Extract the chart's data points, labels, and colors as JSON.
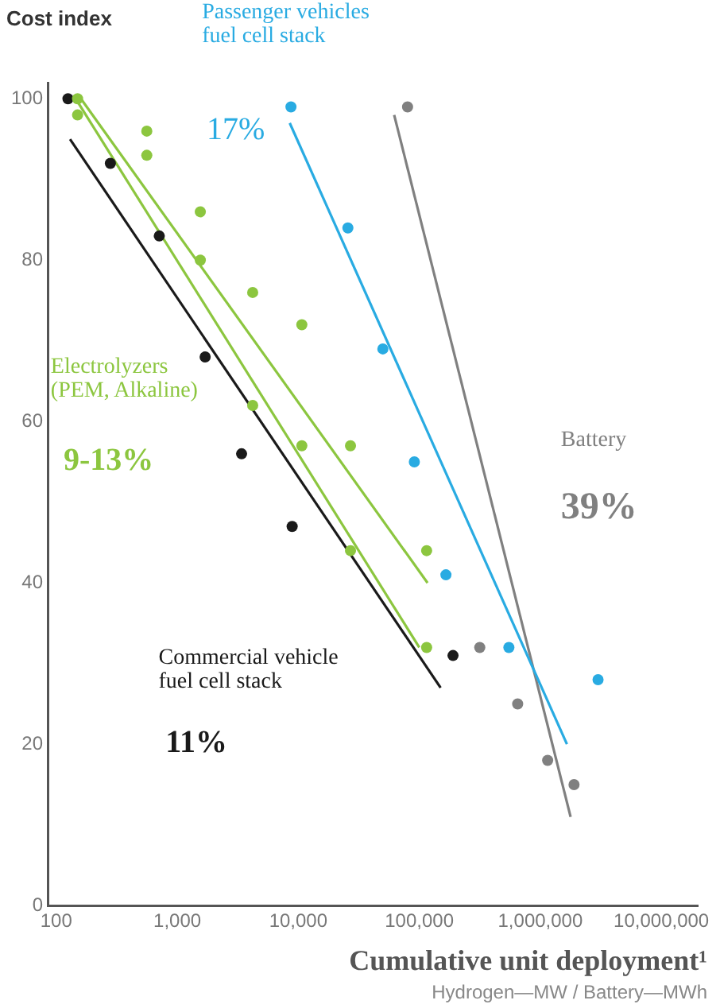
{
  "chart_data": {
    "type": "scatter",
    "xlabel": "Cumulative unit deployment¹",
    "ylabel": "Cost index",
    "log": "x",
    "grid": false,
    "legend": false,
    "line_style": "solid",
    "xlim": [
      85,
      20000000
    ],
    "xticks": [
      100,
      {
        "value": 1000,
        "label": "1,000"
      },
      {
        "value": 10000,
        "label": "10,000"
      },
      {
        "value": 100000,
        "label": "100,000"
      },
      {
        "value": 1000000,
        "label": "1,000,000"
      },
      {
        "value": 10000000,
        "label": "10,000,000"
      }
    ],
    "ylim": [
      0,
      102
    ],
    "yticks": [
      0,
      20,
      40,
      60,
      80,
      100
    ],
    "annotations": [
      "17%",
      "9-13%",
      "11%",
      "39%",
      "Hydrogen—MW / Battery—MWh"
    ],
    "series": [
      {
        "type": "scatter",
        "marker": "circle",
        "name": "Passenger vehicles fuel cell stack",
        "color": "#29abe2",
        "x": [
          8700,
          25700,
          50000,
          91000,
          166000,
          550000,
          3000000
        ],
        "values": [
          99,
          84,
          69,
          55,
          41,
          32,
          28
        ]
      },
      {
        "type": "scatter",
        "marker": "circle",
        "name": "Electrolyzers (PEM, Alkaline)",
        "color": "#8cc63f",
        "x": [
          150,
          150,
          560,
          560,
          1550,
          1550,
          4200,
          4200,
          10700,
          10700,
          27000,
          27000,
          115000,
          115000
        ],
        "values": [
          100,
          98,
          96,
          93,
          86,
          80,
          76,
          62,
          72,
          57,
          57,
          44,
          44,
          32
        ]
      },
      {
        "type": "scatter",
        "marker": "circle",
        "name": "Commercial vehicle fuel cell stack",
        "color": "#1a1a1a",
        "x": [
          125,
          280,
          710,
          1700,
          3400,
          8900,
          190000
        ],
        "values": [
          100,
          92,
          83,
          68,
          56,
          47,
          31
        ]
      },
      {
        "type": "scatter",
        "marker": "circle",
        "name": "Battery",
        "color": "#808080",
        "x": [
          80000,
          316000,
          650000,
          1150000,
          1900000
        ],
        "values": [
          99,
          32,
          25,
          18,
          15
        ]
      },
      {
        "type": "line",
        "marker": "none",
        "color": "#29abe2",
        "x": [
          8500,
          1660000
        ],
        "values": [
          97,
          20
        ]
      },
      {
        "type": "line",
        "marker": "none",
        "color": "#8cc63f",
        "x": [
          160,
          117000
        ],
        "values": [
          100,
          40
        ]
      },
      {
        "type": "line",
        "marker": "none",
        "color": "#8cc63f",
        "x": [
          145,
          100000
        ],
        "values": [
          100,
          32
        ]
      },
      {
        "type": "line",
        "marker": "none",
        "color": "#1a1a1a",
        "x": [
          130,
          150000
        ],
        "values": [
          95,
          27
        ]
      },
      {
        "type": "line",
        "marker": "none",
        "color": "#808080",
        "x": [
          62000,
          1780000
        ],
        "values": [
          98,
          11
        ]
      }
    ]
  }
}
